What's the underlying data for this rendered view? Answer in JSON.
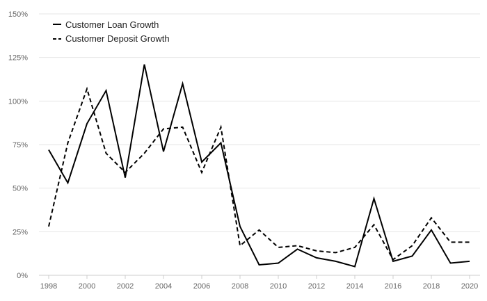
{
  "chart_data": {
    "type": "line",
    "x": [
      1998,
      1999,
      2000,
      2001,
      2002,
      2003,
      2004,
      2005,
      2006,
      2007,
      2008,
      2009,
      2010,
      2011,
      2012,
      2013,
      2014,
      2015,
      2016,
      2017,
      2018,
      2019,
      2020
    ],
    "x_tick_labels": [
      "1998",
      "2000",
      "2002",
      "2004",
      "2006",
      "2008",
      "2010",
      "2012",
      "2014",
      "2016",
      "2018",
      "2020"
    ],
    "y_tick_labels": [
      "0%",
      "25%",
      "50%",
      "75%",
      "100%",
      "125%",
      "150%"
    ],
    "ylim": [
      0,
      150
    ],
    "grid": true,
    "legend_position": "top-left",
    "series": [
      {
        "name": "Customer Loan Growth",
        "style": "solid",
        "color": "#000000",
        "values": [
          72,
          53,
          87,
          106,
          56,
          121,
          71,
          110,
          65,
          76,
          28,
          6,
          7,
          15,
          10,
          8,
          5,
          44,
          8,
          11,
          26,
          7,
          8
        ]
      },
      {
        "name": "Customer Deposit Growth",
        "style": "dashed",
        "color": "#000000",
        "values": [
          28,
          76,
          107,
          70,
          59,
          70,
          84,
          85,
          59,
          85,
          17,
          26,
          16,
          17,
          14,
          13,
          16,
          29,
          9,
          17,
          33,
          19,
          19
        ]
      }
    ]
  }
}
